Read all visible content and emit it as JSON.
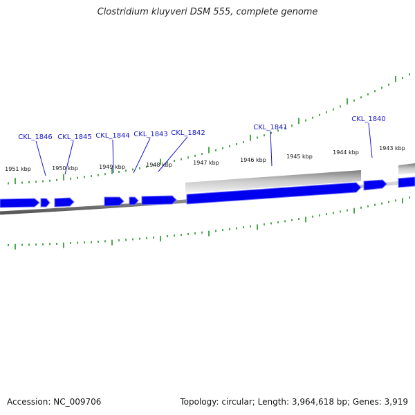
{
  "title": "Clostridium kluyveri DSM 555, complete genome",
  "accession_label": "Accession: NC_009706",
  "summary_label": "Topology: circular; Length: 3,964,618 bp; Genes: 3,919",
  "colors": {
    "gene": "#0000ee",
    "gene_shadow": "#7777ff",
    "label": "#1515c8",
    "tick": "#118811",
    "backbone": "#888888",
    "region": "#9a9a9a"
  },
  "ruler": {
    "unit": "kbp",
    "ticks": [
      {
        "kbp": 1951,
        "label": "1951 kbp"
      },
      {
        "kbp": 1950,
        "label": "1950 kbp"
      },
      {
        "kbp": 1949,
        "label": "1949 kbp"
      },
      {
        "kbp": 1948,
        "label": "1948 kbp"
      },
      {
        "kbp": 1947,
        "label": "1947 kbp"
      },
      {
        "kbp": 1946,
        "label": "1946 kbp"
      },
      {
        "kbp": 1945,
        "label": "1945 kbp"
      },
      {
        "kbp": 1944,
        "label": "1944 kbp"
      },
      {
        "kbp": 1943,
        "label": "1943 kbp"
      }
    ]
  },
  "gene_labels": [
    "CKL_1846",
    "CKL_1845",
    "CKL_1844",
    "CKL_1843",
    "CKL_1842",
    "CKL_1841",
    "CKL_1840"
  ]
}
